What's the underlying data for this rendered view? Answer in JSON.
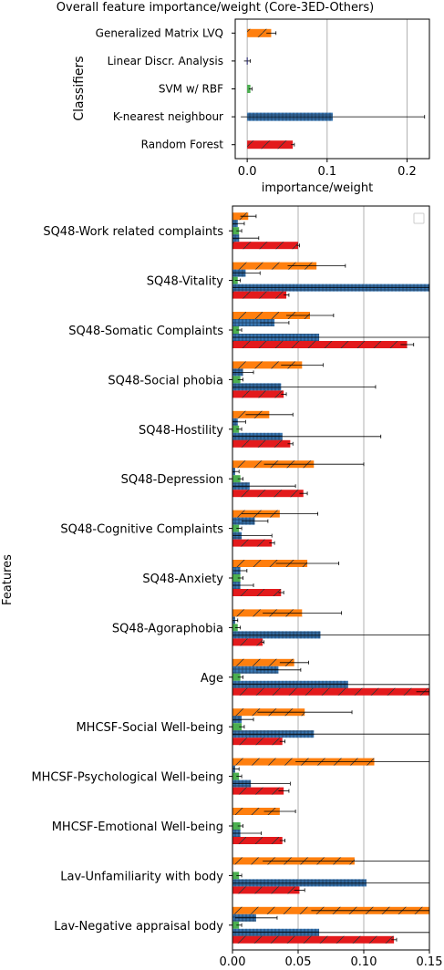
{
  "colors": {
    "orange": "#ff7f0e",
    "blue": "#3a78b4",
    "green": "#4caf50",
    "red": "#e31a1c",
    "navy": "#1f1f6e",
    "grid": "#b0b0b0"
  },
  "chart_data": [
    {
      "type": "bar",
      "orientation": "horizontal",
      "title": "Overall feature importance/weight (Core-3ED-Others)",
      "xlabel": "importance/weight",
      "ylabel": "Classifiers",
      "xlim": [
        -0.015,
        0.228
      ],
      "xticks": [
        "0.0",
        "0.1",
        "0.2"
      ],
      "grid": "x",
      "categories": [
        "Generalized Matrix LVQ",
        "Linear Discr. Analysis",
        "SVM w/ RBF",
        "K-nearest neighbour",
        "Random Forest"
      ],
      "series": [
        {
          "values": [
            0.03,
            0.0,
            0.004,
            0.107,
            0.057
          ],
          "errors": [
            0.006,
            0.004,
            0.002,
            0.115,
            0.002
          ]
        }
      ],
      "bar_colors": [
        "orange",
        "navy",
        "green",
        "blue",
        "red"
      ],
      "hatches": [
        "/",
        "",
        "",
        "+",
        "/"
      ]
    },
    {
      "type": "bar",
      "orientation": "horizontal",
      "ylabel": "Features",
      "xlim": [
        0.0,
        0.15
      ],
      "xticks": [
        "0.00",
        "0.05",
        "0.10",
        "0.15"
      ],
      "grid": "x",
      "legend": "top-right, empty",
      "categories": [
        "SQ48-Work related complaints",
        "SQ48-Vitality",
        "SQ48-Somatic Complaints",
        "SQ48-Social phobia",
        "SQ48-Hostility",
        "SQ48-Depression",
        "SQ48-Cognitive Complaints",
        "SQ48-Anxiety",
        "SQ48-Agoraphobia",
        "Age",
        "MHCSF-Social Well-being",
        "MHCSF-Psychological Well-being",
        "MHCSF-Emotional Well-being",
        "Lav-Unfamiliarity with body",
        "Lav-Negative appraisal body"
      ],
      "series_order": [
        "orange",
        "blue",
        "green",
        "blue2",
        "red"
      ],
      "series": [
        {
          "color": "orange",
          "hatch": "/",
          "values": [
            0.012,
            0.064,
            0.059,
            0.053,
            0.028,
            0.062,
            0.036,
            0.057,
            0.053,
            0.047,
            0.055,
            0.108,
            0.036,
            0.093,
            0.15
          ],
          "errors": [
            0.006,
            0.022,
            0.018,
            0.016,
            0.018,
            0.038,
            0.029,
            0.024,
            0.03,
            0.011,
            0.036,
            0.06,
            0.012,
            0.07,
            0.09
          ]
        },
        {
          "color": "blue",
          "hatch": "+",
          "values": [
            0.004,
            0.01,
            0.032,
            0.008,
            0.004,
            0.002,
            0.017,
            0.006,
            0.002,
            0.035,
            0.007,
            0.002,
            0.0,
            0.0,
            0.018
          ],
          "errors": [
            0.005,
            0.011,
            0.011,
            0.008,
            0.006,
            0.003,
            0.01,
            0.005,
            0.002,
            0.017,
            0.009,
            0.003,
            0.0,
            0.0,
            0.016
          ]
        },
        {
          "color": "green",
          "hatch": "",
          "values": [
            0.005,
            0.004,
            0.005,
            0.006,
            0.005,
            0.006,
            0.005,
            0.006,
            0.004,
            0.006,
            0.007,
            0.005,
            0.006,
            0.005,
            0.005
          ],
          "errors": [
            0.002,
            0.002,
            0.002,
            0.002,
            0.002,
            0.002,
            0.002,
            0.002,
            0.002,
            0.002,
            0.002,
            0.002,
            0.002,
            0.002,
            0.002
          ]
        },
        {
          "color": "blue",
          "hatch": "+",
          "values": [
            0.005,
            0.15,
            0.066,
            0.037,
            0.038,
            0.013,
            0.007,
            0.006,
            0.067,
            0.088,
            0.062,
            0.014,
            0.006,
            0.102,
            0.066
          ],
          "errors": [
            0.015,
            0.15,
            0.1,
            0.072,
            0.075,
            0.035,
            0.023,
            0.01,
            0.17,
            0.15,
            0.13,
            0.03,
            0.016,
            0.15,
            0.12
          ]
        },
        {
          "color": "red",
          "hatch": "/",
          "values": [
            0.05,
            0.041,
            0.133,
            0.039,
            0.044,
            0.054,
            0.03,
            0.037,
            0.023,
            0.15,
            0.038,
            0.039,
            0.038,
            0.051,
            0.123
          ],
          "errors": [
            0.001,
            0.002,
            0.005,
            0.002,
            0.002,
            0.003,
            0.002,
            0.002,
            0.001,
            0.01,
            0.002,
            0.004,
            0.002,
            0.004,
            0.002
          ]
        }
      ]
    }
  ]
}
